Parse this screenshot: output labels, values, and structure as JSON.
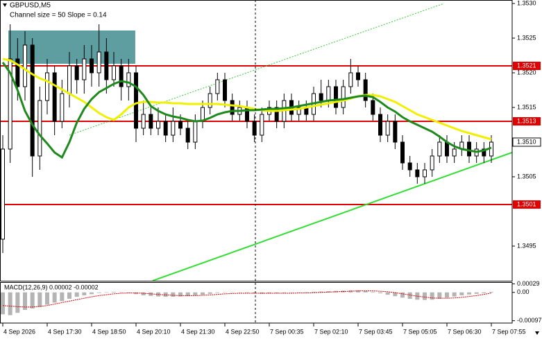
{
  "chart_data": {
    "type": "candlestick",
    "title": "GBPUSD,M5",
    "subtitle": "Channel size = 50 Slope = 0.14",
    "categories": [
      "4 Sep 2026",
      null,
      null,
      null,
      null,
      null,
      "4 Sep 17:30",
      null,
      null,
      null,
      null,
      null,
      "4 Sep 18:50",
      null,
      null,
      null,
      null,
      null,
      "4 Sep 20:10",
      null,
      null,
      null,
      null,
      null,
      "4 Sep 21:30",
      null,
      null,
      null,
      null,
      null,
      "4 Sep 22:50",
      null,
      null,
      null,
      null,
      null,
      "7 Sep 00:35",
      null,
      null,
      null,
      null,
      null,
      "7 Sep 02:10",
      null,
      null,
      null,
      null,
      null,
      "7 Sep 03:45",
      null,
      null,
      null,
      null,
      null,
      "7 Sep 05:05",
      null,
      null,
      null,
      null,
      null,
      "7 Sep 06:30",
      null,
      null,
      null,
      null,
      null,
      "7 Sep 07:55"
    ],
    "open": [
      1.3496,
      1.3509,
      1.3522,
      1.3518,
      1.3524,
      1.3508,
      1.3516,
      1.352,
      1.3513,
      1.3517,
      1.3521,
      1.3519,
      1.3522,
      1.352,
      1.3523,
      1.3519,
      1.3521,
      1.3518,
      1.352,
      1.3512,
      1.3514,
      1.3512,
      1.3513,
      1.3511,
      1.3513,
      1.3512,
      1.351,
      1.3513,
      1.3515,
      1.3517,
      1.3519,
      1.3516,
      1.3514,
      1.3515,
      1.3513,
      1.3511,
      1.3514,
      1.3515,
      1.3513,
      1.3516,
      1.3514,
      1.3515,
      1.3514,
      1.3517,
      1.3516,
      1.3518,
      1.3515,
      1.3518,
      1.352,
      1.3519,
      1.3516,
      1.3514,
      1.3511,
      1.3513,
      1.351,
      1.3507,
      1.3506,
      1.3505,
      1.3506,
      1.3508,
      1.351,
      1.3508,
      1.3509,
      1.351,
      1.3508,
      1.3509,
      1.3508
    ],
    "high": [
      1.3511,
      1.3527,
      1.3525,
      1.3526,
      1.3525,
      1.3518,
      1.3522,
      1.3521,
      1.3519,
      1.3523,
      1.3522,
      1.3524,
      1.3524,
      1.3527,
      1.3525,
      1.3523,
      1.3522,
      1.3522,
      1.3521,
      1.3516,
      1.3515,
      1.3515,
      1.3514,
      1.3515,
      1.3514,
      1.3513,
      1.3514,
      1.3516,
      1.3518,
      1.352,
      1.352,
      1.3517,
      1.3516,
      1.3516,
      1.3514,
      1.3515,
      1.3516,
      1.3516,
      1.3517,
      1.3517,
      1.3516,
      1.3516,
      1.3518,
      1.3519,
      1.3519,
      1.3519,
      1.3519,
      1.3522,
      1.3521,
      1.352,
      1.3517,
      1.3515,
      1.3514,
      1.3514,
      1.3511,
      1.3508,
      1.3507,
      1.3507,
      1.3509,
      1.3511,
      1.3511,
      1.351,
      1.3511,
      1.3511,
      1.351,
      1.351,
      1.3511
    ],
    "low": [
      1.3494,
      1.3507,
      1.3516,
      1.3516,
      1.3505,
      1.3506,
      1.3514,
      1.3511,
      1.3512,
      1.3515,
      1.3517,
      1.3517,
      1.3518,
      1.3518,
      1.3517,
      1.3518,
      1.3516,
      1.3516,
      1.351,
      1.3511,
      1.3511,
      1.3511,
      1.351,
      1.351,
      1.3511,
      1.3509,
      1.3509,
      1.3512,
      1.3514,
      1.3516,
      1.3515,
      1.3513,
      1.3513,
      1.3512,
      1.351,
      1.351,
      1.3513,
      1.3512,
      1.3512,
      1.3513,
      1.3513,
      1.3513,
      1.3513,
      1.3515,
      1.3515,
      1.3514,
      1.3514,
      1.3517,
      1.3518,
      1.3515,
      1.3513,
      1.351,
      1.351,
      1.3509,
      1.3506,
      1.3505,
      1.3504,
      1.3504,
      1.3505,
      1.3507,
      1.3507,
      1.3507,
      1.3508,
      1.3507,
      1.3507,
      1.3507,
      1.3507
    ],
    "close": [
      1.3509,
      1.3522,
      1.3518,
      1.3524,
      1.3508,
      1.3516,
      1.352,
      1.3513,
      1.3517,
      1.3521,
      1.3519,
      1.3522,
      1.352,
      1.3523,
      1.3519,
      1.3521,
      1.3518,
      1.352,
      1.3512,
      1.3514,
      1.3512,
      1.3513,
      1.3511,
      1.3513,
      1.3512,
      1.351,
      1.3513,
      1.3515,
      1.3517,
      1.3519,
      1.3516,
      1.3514,
      1.3515,
      1.3513,
      1.3511,
      1.3514,
      1.3515,
      1.3513,
      1.3516,
      1.3514,
      1.3515,
      1.3514,
      1.3517,
      1.3516,
      1.3518,
      1.3515,
      1.3518,
      1.352,
      1.3519,
      1.3516,
      1.3514,
      1.3511,
      1.3513,
      1.351,
      1.3507,
      1.3506,
      1.3505,
      1.3506,
      1.3508,
      1.351,
      1.3508,
      1.3509,
      1.351,
      1.3508,
      1.3509,
      1.3508,
      1.351
    ],
    "candle_color": "#000000",
    "overlays": [
      {
        "color": "#f0f000",
        "values": [
          1.3522,
          1.35218,
          1.35212,
          1.35205,
          1.35198,
          1.35192,
          1.35188,
          1.35182,
          1.35176,
          1.3517,
          1.35164,
          1.35158,
          1.3515,
          1.35142,
          1.35136,
          1.35132,
          1.3514,
          1.3515,
          1.35156,
          1.35158,
          1.35158,
          1.35157,
          1.35157,
          1.35156,
          1.35156,
          1.35155,
          1.35155,
          1.35155,
          1.35155,
          1.35155,
          1.35154,
          1.35153,
          1.35152,
          1.3515,
          1.35148,
          1.35146,
          1.35145,
          1.35145,
          1.35146,
          1.35147,
          1.35148,
          1.3515,
          1.35152,
          1.35154,
          1.35156,
          1.35158,
          1.3516,
          1.35163,
          1.35166,
          1.35168,
          1.35168,
          1.35166,
          1.35162,
          1.35158,
          1.35152,
          1.35146,
          1.3514,
          1.35136,
          1.35132,
          1.35128,
          1.35124,
          1.3512,
          1.35116,
          1.35113,
          1.3511,
          1.35107,
          1.35104
        ]
      },
      {
        "color": "#1e8a1e",
        "values": [
          1.35215,
          1.352,
          1.35175,
          1.35145,
          1.35125,
          1.3511,
          1.35098,
          1.35085,
          1.35078,
          1.351,
          1.35128,
          1.35148,
          1.35162,
          1.35172,
          1.35178,
          1.35184,
          1.35188,
          1.35186,
          1.3518,
          1.35168,
          1.35152,
          1.35145,
          1.3514,
          1.35137,
          1.35135,
          1.35132,
          1.3513,
          1.35131,
          1.35135,
          1.3514,
          1.35143,
          1.35145,
          1.35145,
          1.35146,
          1.35146,
          1.35147,
          1.35148,
          1.35148,
          1.35149,
          1.3515,
          1.35152,
          1.35154,
          1.35156,
          1.35158,
          1.3516,
          1.35161,
          1.35162,
          1.35164,
          1.35166,
          1.35167,
          1.35165,
          1.35158,
          1.3515,
          1.35144,
          1.35136,
          1.3513,
          1.35125,
          1.3512,
          1.35115,
          1.35108,
          1.351,
          1.35094,
          1.3509,
          1.35088,
          1.35086,
          1.35088,
          1.35092
        ]
      }
    ],
    "trendlines": [
      {
        "x": [
          20.25,
          68.8
        ],
        "values": [
          1.349,
          1.35085
        ],
        "color": "#33dd33",
        "style": "solid"
      },
      {
        "x": [
          9,
          59.6
        ],
        "values": [
          1.3511,
          1.353
        ],
        "color": "#33cc33",
        "style": "dotted"
      }
    ],
    "zone": {
      "x": [
        0.75,
        17.9
      ],
      "values": [
        1.35213,
        1.35261
      ],
      "color": "#5f9ea0"
    },
    "levels": [
      {
        "value": 1.3521,
        "color": "#e00000"
      },
      {
        "value": 1.3513,
        "color": "#e00000"
      },
      {
        "value": 1.3501,
        "color": "#e00000"
      }
    ],
    "last_price": {
      "value": 1.351,
      "label": "1.3510"
    },
    "ylim": [
      1.349,
      1.35305
    ],
    "yticks": [
      {
        "value": 1.353,
        "label": "1.3530"
      },
      1.3525,
      {
        "value": 1.352,
        "label": "1.3520"
      },
      1.3515,
      1.3505,
      1.3495
    ],
    "macd": {
      "title": "MACD(12,26,9) 0.00002 -0.00002",
      "histogram": [
        -0.00075,
        -0.00078,
        -0.0007,
        -0.0006,
        -0.00055,
        -0.0005,
        -0.00042,
        -0.00035,
        -0.0003,
        -0.00022,
        -0.00015,
        -0.0001,
        -6e-05,
        -2e-05,
        1e-05,
        2e-05,
        1e-05,
        -2e-05,
        -6e-05,
        -0.0001,
        -0.00012,
        -0.00014,
        -0.00015,
        -0.00015,
        -0.00014,
        -0.00013,
        -0.0001,
        -8e-05,
        -5e-05,
        -2e-05,
        0,
        1e-05,
        0,
        -2e-05,
        -4e-05,
        -5e-05,
        -4e-05,
        -3e-05,
        -2e-05,
        -1e-05,
        0,
        1e-05,
        2e-05,
        3e-05,
        4e-05,
        5e-05,
        6e-05,
        7e-05,
        7e-05,
        5e-05,
        2e-05,
        -3e-05,
        -8e-05,
        -0.00013,
        -0.00018,
        -0.00022,
        -0.00025,
        -0.00026,
        -0.00025,
        -0.00022,
        -0.00018,
        -0.00014,
        -0.0001,
        -7e-05,
        -5e-05,
        -3e-05,
        2e-05
      ],
      "signal": [
        -0.00045,
        -0.00047,
        -0.00049,
        -0.0005,
        -0.0005,
        -0.00048,
        -0.00045,
        -0.0004,
        -0.00035,
        -0.0003,
        -0.00025,
        -0.0002,
        -0.00015,
        -0.00011,
        -8e-05,
        -5e-05,
        -3e-05,
        -2e-05,
        -2e-05,
        -3e-05,
        -5e-05,
        -7e-05,
        -9e-05,
        -0.0001,
        -0.00011,
        -0.00011,
        -0.00011,
        -0.0001,
        -9e-05,
        -7e-05,
        -5e-05,
        -4e-05,
        -3e-05,
        -3e-05,
        -3e-05,
        -3e-05,
        -3e-05,
        -3e-05,
        -3e-05,
        -3e-05,
        -2e-05,
        -2e-05,
        -1e-05,
        0,
        1e-05,
        2e-05,
        3e-05,
        4e-05,
        5e-05,
        5e-05,
        5e-05,
        4e-05,
        2e-05,
        -1e-05,
        -5e-05,
        -9e-05,
        -0.00013,
        -0.00016,
        -0.00019,
        -0.0002,
        -0.0002,
        -0.00019,
        -0.00017,
        -0.00014,
        -0.00011,
        -7e-05,
        -2e-05
      ],
      "hist_color": "#b4b4b4",
      "signal_color": "#e00000",
      "ylim": [
        -0.00105,
        0.00035
      ],
      "yticks": [
        0.00029,
        {
          "value": 0,
          "label": "0.00"
        },
        -0.00097
      ]
    }
  }
}
